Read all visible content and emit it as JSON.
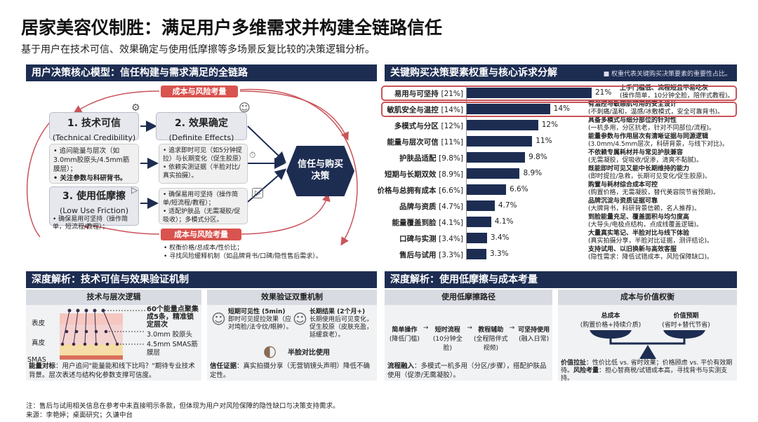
{
  "title": "居家美容仪制胜：满足用户多维需求并构建全链路信任",
  "subtitle": "基于用户在技术可信、效果确定与使用低摩擦等多场景反复比较的决策逻辑分析。",
  "model": {
    "header": "用户决策核心模型：信任构建与需求满足的全链路",
    "cost_tag_top": "成本与风险考量",
    "cost_tag_bottom": "成本与风险考量",
    "box1": {
      "title": "1. 技术可信",
      "en": "(Technical Credibility)",
      "b1": "• 追问能量与层次（如3.0mm胶原头/4.5mm筋膜层）；",
      "b2": "• 关注参数与科研背书。"
    },
    "box2": {
      "title": "2. 效果确定",
      "en": "(Definite Effects)",
      "b1": "• 追求即时可见（如5分钟提拉）与长期变化（促生胶原）",
      "b2": "• 依赖实测证据（半脸对比/真实拍摄）。"
    },
    "box3": {
      "title": "3. 使用低摩擦",
      "en": "(Low Use Friction)",
      "b1": "• 确保易用可坚持（操作简单，短流程/教程）；"
    },
    "box4": {
      "b1": "• 确保易用可坚持（操作简单/短流程/教程）；",
      "b2": "• 适配护肤品（无需凝胶/促吸收）；多模式分区。"
    },
    "hexagon": "信任与购买决策",
    "cost_b1": "• 权衡价格/总成本/性价比；",
    "cost_b2": "• 寻找风险缓释机制（如品牌背书/口碑/隐性售后需求）。"
  },
  "weights": {
    "header": "关键购买决策要素权重与核心诉求分解",
    "note": "■ 权重代表关键购买决策要素的重要性占比。",
    "highlight_color": "#c9545a",
    "bar_color": "#1d2d52"
  },
  "chart_data": {
    "type": "bar",
    "orientation": "horizontal",
    "categories": [
      "易用与可坚持",
      "敏肌安全与温控",
      "多模式与分区",
      "能量与层次可信",
      "护肤品适配",
      "短期与长期双效",
      "价格与总拥有成本",
      "品牌与资质",
      "能量覆盖到脸",
      "口碑与实测",
      "售后与试用"
    ],
    "category_tags": [
      "[21%]",
      "[14%]",
      "[12%]",
      "[11%]",
      "[9.8%]",
      "[8.9%]",
      "[6.6%]",
      "[4.7%]",
      "[4.1%]",
      "[3.4%]",
      "[3.3%]"
    ],
    "values": [
      21,
      14,
      12,
      11,
      9.8,
      8.9,
      6.6,
      4.7,
      4.1,
      3.4,
      3.3
    ],
    "value_labels": [
      "21%",
      "14%",
      "12%",
      "11%",
      "9.8%",
      "8.9%",
      "6.6%",
      "4.7%",
      "4.1%",
      "3.4%",
      "3.3%"
    ],
    "unit": "%",
    "highlighted": [
      0,
      1
    ],
    "descriptions": [
      [
        "上手门槛低、流程短且不易吃灰",
        "(操作简单，10分钟全脸，陪伴式教程)。"
      ],
      [
        "有温控与敏感肌可用的安全设计",
        "(不刺痛/温和，温感/冰敷模式，安全可靠背书)。"
      ],
      [
        "具备多模式与细分部位的针对性",
        "(一机多用，分区抗老，针对不同部位/流程)。"
      ],
      [
        "能量参数与作用层次有清晰证据与同源逻辑",
        "(3.0mm/4.5mm层次，科研背景，与线下对比)。"
      ],
      [
        "不依赖专属耗材并与常见护肤兼容",
        "(无需凝胶，促吸收/促渗，清爽不黏腻)。"
      ],
      [
        "既能即时可见又能中长期维持的能力",
        "(即时提拉/急救，长期可见变化/促生胶原)。"
      ],
      [
        "购置与耗材综合成本可控",
        "(购置价格，无需凝胶，替代美容院节省预期)。"
      ],
      [
        "品牌沉淀与资质证据可靠",
        "(大牌背书，科研背景信赖，名人推荐)。"
      ],
      [
        "到脸能量充足、覆盖面积与均匀度高",
        "(大导头/电极点结构，点成线覆盖逻辑)。"
      ],
      [
        "大量真实笔记、半脸对比与线下体验",
        "(真实拍摄分享，半脸对比证据，测评结论)。"
      ],
      [
        "支持试用、以旧换新与高效客服",
        "(隐性需求：降低试错成本，风险保障缺口)。"
      ]
    ]
  },
  "tech": {
    "header": "深度解析：技术可信与效果验证机制",
    "layers": {
      "title": "技术与层次逻辑",
      "l1": "表皮",
      "l2": "真皮",
      "l3": "SMAS",
      "a1": "60个能量点聚集成5条，精准锁定层次",
      "a2": "3.0mm 胶原头",
      "a3": "4.5mm SMAS筋膜层",
      "note_b": "能量对标",
      "note": "：用户追问\"能量能和线下比吗？\"期待专业技术背景。层次表述与结构化参数支撑可信度。"
    },
    "effect": {
      "title": "效果验证双重机制",
      "s_t": "短期可见性 (5min)",
      "s_d": "即时可见提拉效果（应对垮脸/法令纹/眼肿）。",
      "l_t": "长期结果 (2个月+)",
      "l_d": "长期使用后可见变化，促生胶原（皮肤充盈，延缓衰老）。",
      "half": "半脸对比使用",
      "note_b": "信任证据",
      "note": "：真实拍摄分享（无营销镜头声明）降低不确定性。"
    }
  },
  "friction": {
    "header": "深度解析：使用低摩擦与成本考量",
    "path": {
      "title": "使用低摩擦路径",
      "steps": [
        {
          "t": "简单操作",
          "d": "(降低门槛)"
        },
        {
          "t": "短时流程",
          "d": "(10分钟全脸)"
        },
        {
          "t": "教程辅助",
          "d": "(全程陪伴式视频)"
        },
        {
          "t": "可坚持使用",
          "d": "(融入日常)"
        }
      ],
      "arrow": "→",
      "note_b": "流程融入",
      "note": "：多模式一机多用（分区/步骤），搭配护肤品使用（促渗/无需凝胶）。"
    },
    "cost": {
      "title": "成本与价值权衡",
      "left_t": "总成本",
      "left_d": "(购置价格+持续介质)",
      "right_t": "价值预期",
      "right_d": "(省时+替代节省)",
      "note_b1": "价值拉扯",
      "note1": "：性价比低 vs. 省时效果；价格顾虑 vs. 平价有效期待。",
      "note_b2": "风险考量",
      "note2": "：担心智商税/试错成本高，寻找背书与实测支持。"
    }
  },
  "footer": {
    "note": "注：售后与试用相关信息在参考中未直接明示条款，但体现为用户对风险保障的隐性缺口与决策支持需求。",
    "source": "来源：李艳婷；桌面研究；久谦中台"
  }
}
